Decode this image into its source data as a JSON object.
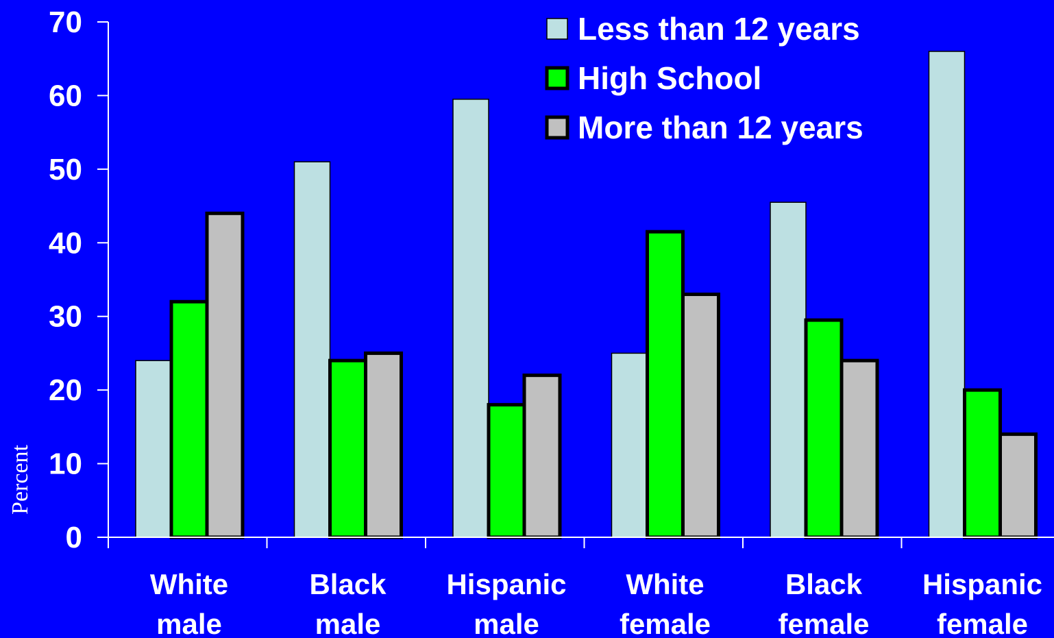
{
  "chart_data": {
    "type": "bar",
    "title": "",
    "xlabel": "",
    "ylabel": "Percent",
    "ylim": [
      0,
      70
    ],
    "yticks": [
      0,
      10,
      20,
      30,
      40,
      50,
      60,
      70
    ],
    "grid": false,
    "legend_position": "top-right",
    "categories": [
      [
        "White",
        "male"
      ],
      [
        "Black",
        "male"
      ],
      [
        "Hispanic",
        "male"
      ],
      [
        "White",
        "female"
      ],
      [
        "Black",
        "female"
      ],
      [
        "Hispanic",
        "female"
      ]
    ],
    "series": [
      {
        "name": "Less than 12 years",
        "color": "#BDE0E2",
        "values": [
          24,
          51,
          59.5,
          25,
          45.5,
          66
        ]
      },
      {
        "name": "High School",
        "color": "#00FF00",
        "values": [
          32,
          24,
          18,
          41.5,
          29.5,
          20
        ]
      },
      {
        "name": "More than 12 years",
        "color": "#C0C0C0",
        "values": [
          44,
          25,
          22,
          33,
          24,
          14
        ]
      }
    ]
  },
  "colors": {
    "background": "#0000FF",
    "axis": "#FFFFFF",
    "text": "#FFFFFF",
    "bar_outline": "#000000"
  }
}
